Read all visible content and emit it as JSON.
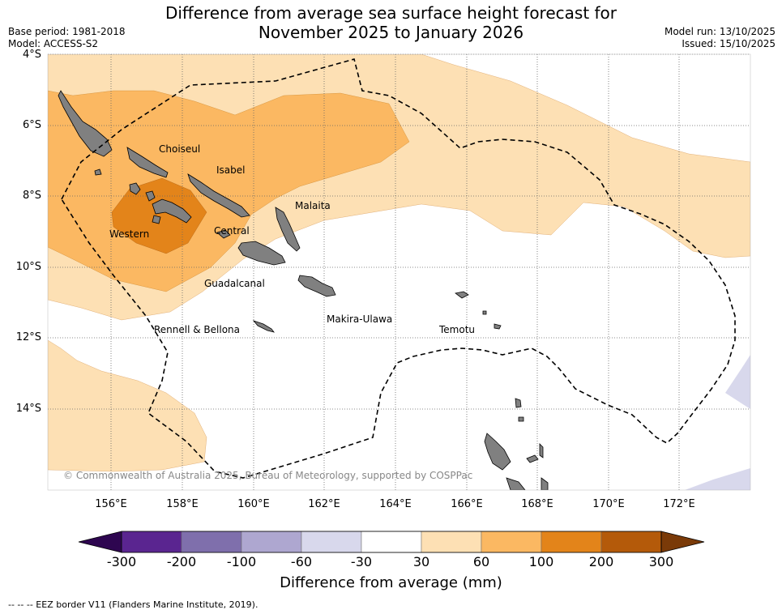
{
  "title_line1": "Difference from average sea surface height forecast for",
  "title_line2": "November 2025 to January 2026",
  "base_period": "Base period: 1981-2018",
  "model": "Model: ACCESS-S2",
  "model_run": "Model run: 13/10/2025",
  "issued": "Issued: 15/10/2025",
  "lat_labels": [
    "4°S",
    "6°S",
    "8°S",
    "10°S",
    "12°S",
    "14°S"
  ],
  "lon_labels": [
    "156°E",
    "158°E",
    "160°E",
    "162°E",
    "164°E",
    "166°E",
    "168°E",
    "170°E",
    "172°E"
  ],
  "provinces": [
    "Choiseul",
    "Isabel",
    "Malaita",
    "Western",
    "Central",
    "Guadalcanal",
    "Makira-Ulawa",
    "Rennell & Bellona",
    "Temotu"
  ],
  "copyright": "© Commonwealth of Australia 2025, Bureau of Meteorology, supported by COSPPac",
  "colorbar": {
    "ticks": [
      "-300",
      "-200",
      "-100",
      "-60",
      "-30",
      "30",
      "60",
      "100",
      "200",
      "300"
    ],
    "colors": [
      "#5a2590",
      "#7f6fac",
      "#aea7d0",
      "#d8d8ec",
      "#ffffff",
      "#fde0b4",
      "#fbb862",
      "#e3841a",
      "#b45a0a"
    ],
    "under_color": "#2e0650",
    "over_color": "#7a3a08",
    "label": "Difference from average (mm)"
  },
  "eez_note": "--  --  -- EEZ border V11 (Flanders Marine Institute, 2019).",
  "land_color": "#808080"
}
